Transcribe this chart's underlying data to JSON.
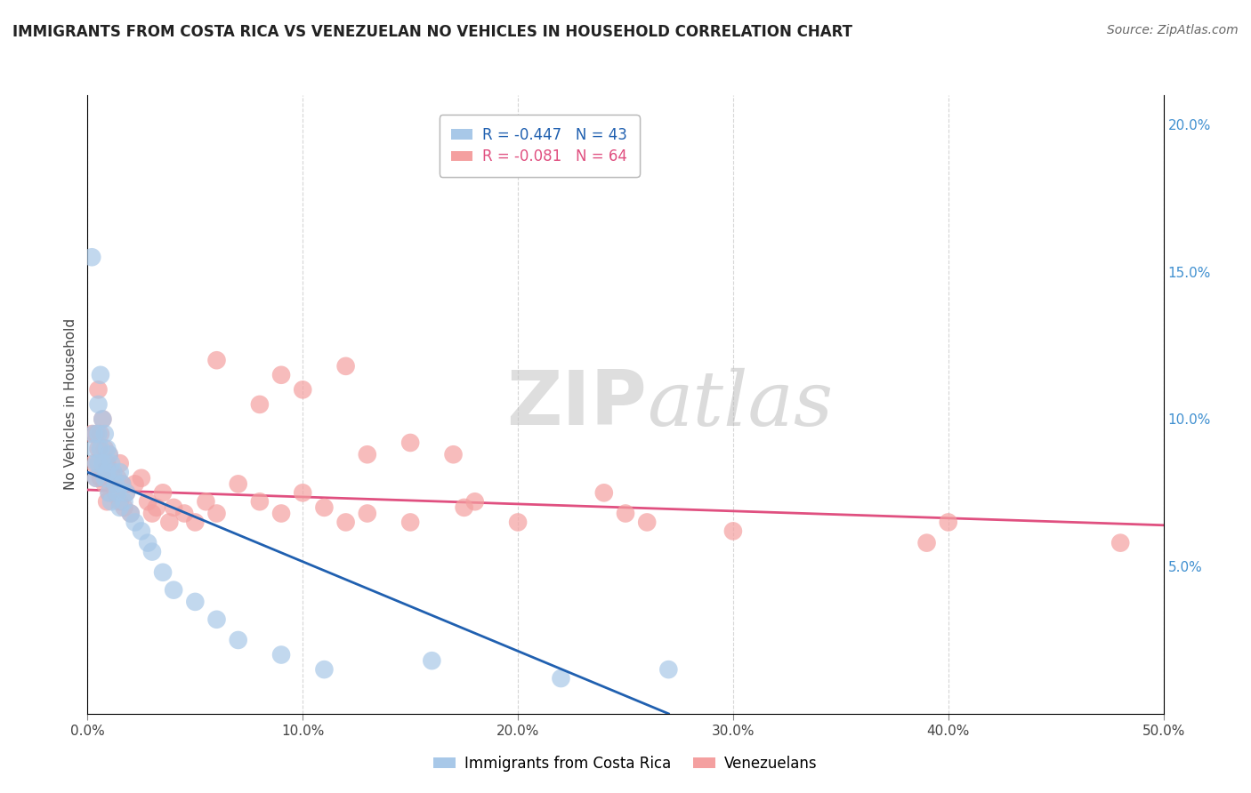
{
  "title": "IMMIGRANTS FROM COSTA RICA VS VENEZUELAN NO VEHICLES IN HOUSEHOLD CORRELATION CHART",
  "source": "Source: ZipAtlas.com",
  "ylabel": "No Vehicles in Household",
  "xlim": [
    0.0,
    0.5
  ],
  "ylim": [
    0.0,
    0.21
  ],
  "xticks": [
    0.0,
    0.1,
    0.2,
    0.3,
    0.4,
    0.5
  ],
  "xticklabels": [
    "0.0%",
    "10.0%",
    "20.0%",
    "30.0%",
    "40.0%",
    "50.0%"
  ],
  "yticks_right": [
    0.05,
    0.1,
    0.15,
    0.2
  ],
  "yticklabels_right": [
    "5.0%",
    "10.0%",
    "15.0%",
    "20.0%"
  ],
  "legend_labels_bottom": [
    "Immigrants from Costa Rica",
    "Venezuelans"
  ],
  "blue_color": "#a8c8e8",
  "pink_color": "#f4a0a0",
  "blue_line_color": "#2060b0",
  "pink_line_color": "#e05080",
  "watermark_zip": "ZIP",
  "watermark_atlas": "atlas",
  "background_color": "#ffffff",
  "grid_color": "#cccccc",
  "blue_scatter_x": [
    0.002,
    0.003,
    0.003,
    0.004,
    0.004,
    0.005,
    0.005,
    0.005,
    0.006,
    0.006,
    0.007,
    0.007,
    0.008,
    0.008,
    0.009,
    0.009,
    0.01,
    0.01,
    0.011,
    0.011,
    0.012,
    0.013,
    0.014,
    0.015,
    0.015,
    0.016,
    0.017,
    0.018,
    0.02,
    0.022,
    0.025,
    0.028,
    0.03,
    0.035,
    0.04,
    0.05,
    0.06,
    0.07,
    0.09,
    0.11,
    0.16,
    0.22,
    0.27
  ],
  "blue_scatter_y": [
    0.155,
    0.095,
    0.09,
    0.085,
    0.08,
    0.105,
    0.095,
    0.085,
    0.115,
    0.09,
    0.1,
    0.085,
    0.095,
    0.08,
    0.09,
    0.082,
    0.088,
    0.075,
    0.085,
    0.072,
    0.082,
    0.078,
    0.075,
    0.082,
    0.07,
    0.078,
    0.072,
    0.075,
    0.068,
    0.065,
    0.062,
    0.058,
    0.055,
    0.048,
    0.042,
    0.038,
    0.032,
    0.025,
    0.02,
    0.015,
    0.018,
    0.012,
    0.015
  ],
  "pink_scatter_x": [
    0.002,
    0.003,
    0.004,
    0.004,
    0.005,
    0.005,
    0.006,
    0.006,
    0.007,
    0.007,
    0.008,
    0.008,
    0.009,
    0.009,
    0.01,
    0.01,
    0.011,
    0.012,
    0.013,
    0.014,
    0.015,
    0.015,
    0.016,
    0.017,
    0.018,
    0.02,
    0.022,
    0.025,
    0.028,
    0.03,
    0.032,
    0.035,
    0.038,
    0.04,
    0.045,
    0.05,
    0.055,
    0.06,
    0.07,
    0.08,
    0.09,
    0.1,
    0.11,
    0.12,
    0.13,
    0.15,
    0.175,
    0.2,
    0.25,
    0.3,
    0.12,
    0.15,
    0.1,
    0.08,
    0.06,
    0.13,
    0.09,
    0.17,
    0.39,
    0.4,
    0.24,
    0.18,
    0.26,
    0.48
  ],
  "pink_scatter_y": [
    0.095,
    0.085,
    0.095,
    0.08,
    0.11,
    0.09,
    0.095,
    0.08,
    0.1,
    0.082,
    0.09,
    0.078,
    0.085,
    0.072,
    0.088,
    0.075,
    0.082,
    0.078,
    0.075,
    0.08,
    0.085,
    0.072,
    0.078,
    0.07,
    0.075,
    0.068,
    0.078,
    0.08,
    0.072,
    0.068,
    0.07,
    0.075,
    0.065,
    0.07,
    0.068,
    0.065,
    0.072,
    0.068,
    0.078,
    0.072,
    0.068,
    0.075,
    0.07,
    0.065,
    0.068,
    0.065,
    0.07,
    0.065,
    0.068,
    0.062,
    0.118,
    0.092,
    0.11,
    0.105,
    0.12,
    0.088,
    0.115,
    0.088,
    0.058,
    0.065,
    0.075,
    0.072,
    0.065,
    0.058
  ],
  "blue_line_x": [
    0.0,
    0.27
  ],
  "blue_line_y": [
    0.082,
    0.0
  ],
  "pink_line_x": [
    0.0,
    0.5
  ],
  "pink_line_y": [
    0.076,
    0.064
  ]
}
